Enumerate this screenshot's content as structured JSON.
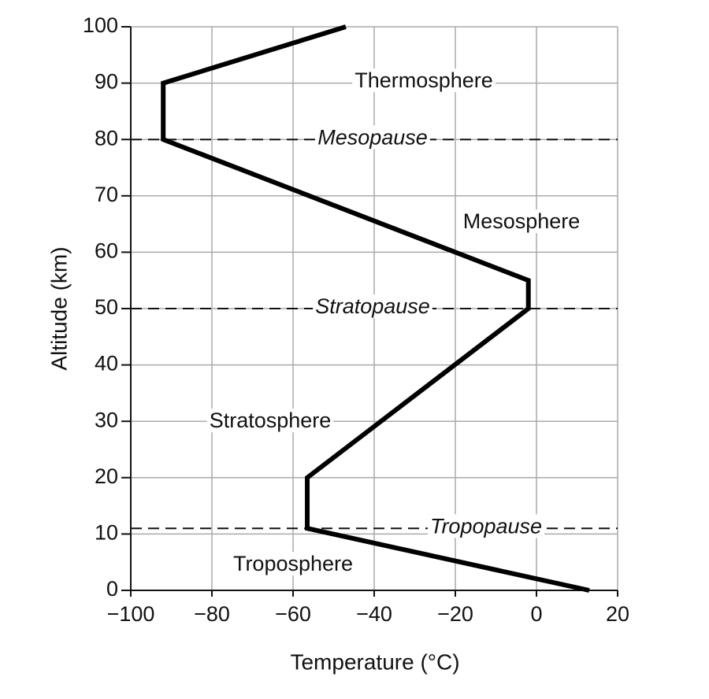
{
  "chart_data": {
    "type": "line",
    "x": [
      13,
      -56.5,
      -56.5,
      -2,
      -2,
      -92,
      -92,
      -47
    ],
    "values": [
      0,
      11,
      20,
      50,
      55,
      80,
      90,
      100
    ],
    "color": "#000000",
    "x_label": "Temperature (°C)",
    "y_label": "Altitude (km)",
    "xlim": [
      -100,
      20
    ],
    "ylim": [
      0,
      100
    ],
    "xticks": [
      {
        "value": -100,
        "label": "−100"
      },
      {
        "value": -80,
        "label": "−80"
      },
      {
        "value": -60,
        "label": "−60"
      },
      {
        "value": -40,
        "label": "−40"
      },
      {
        "value": -20,
        "label": "−20"
      },
      0,
      20
    ],
    "yticks": [
      0,
      10,
      20,
      30,
      40,
      50,
      60,
      70,
      80,
      90,
      100
    ],
    "grid": true,
    "reference_lines": [
      {
        "label": "Mesopause",
        "y": 80
      },
      {
        "label": "Stratopause",
        "y": 50
      },
      {
        "label": "Tropopause",
        "y": 11
      }
    ],
    "annotations": [
      "Thermosphere",
      "Mesosphere",
      "Stratosphere",
      "Troposphere"
    ]
  }
}
